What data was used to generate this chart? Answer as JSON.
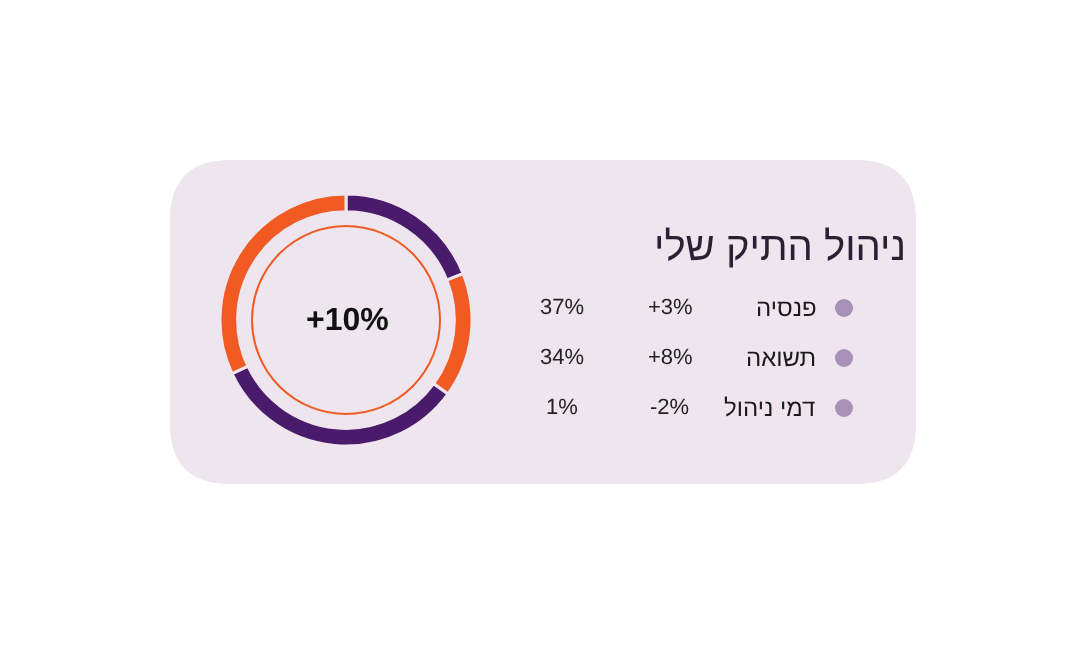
{
  "chart_data": [
    {
      "type": "donut",
      "categories": [
        null,
        null,
        null,
        null
      ],
      "values": [
        19,
        16,
        33,
        32
      ],
      "colors": [
        "#4a1a6b",
        "#f15a22",
        "#4a1a6b",
        "#f15a22"
      ],
      "annotations": [
        "+10%"
      ]
    },
    {
      "type": "other",
      "title": "ניהול התיק שלי",
      "categories": [
        "פנסיה",
        "תשואה",
        "דמי ניהול"
      ],
      "colors": [
        "#a990b8",
        "#a990b8",
        "#a990b8"
      ],
      "annotations": [
        "+3%",
        "37%",
        "+8%",
        "34%",
        "-2%",
        "1%"
      ]
    }
  ]
}
